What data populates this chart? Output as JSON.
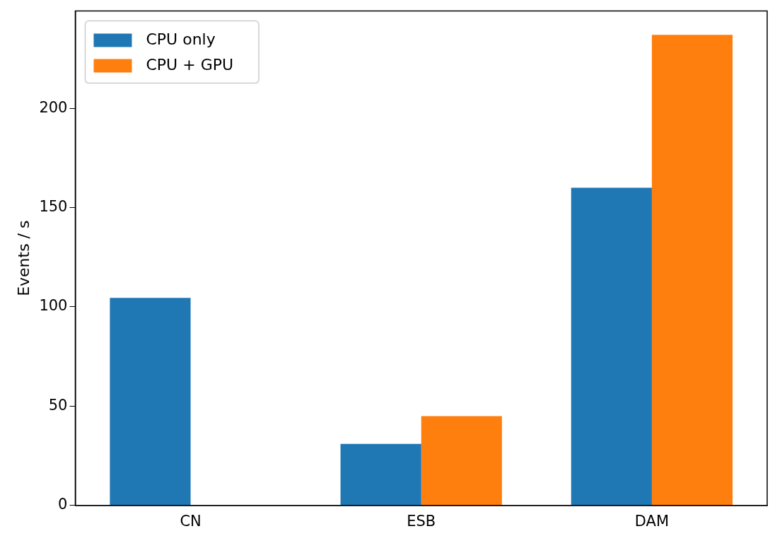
{
  "chart_data": {
    "type": "bar",
    "ylabel": "Events / s",
    "categories": [
      "CN",
      "ESB",
      "DAM"
    ],
    "series": [
      {
        "name": "CPU only",
        "color": "#1f77b4",
        "values": [
          104.5,
          31,
          160
        ]
      },
      {
        "name": "CPU + GPU",
        "color": "#ff7f0e",
        "values": [
          null,
          45,
          237
        ]
      }
    ],
    "ylim": [
      0,
      249
    ],
    "yticks": [
      0,
      50,
      100,
      150,
      200
    ],
    "grid": false,
    "legend": "top left"
  }
}
